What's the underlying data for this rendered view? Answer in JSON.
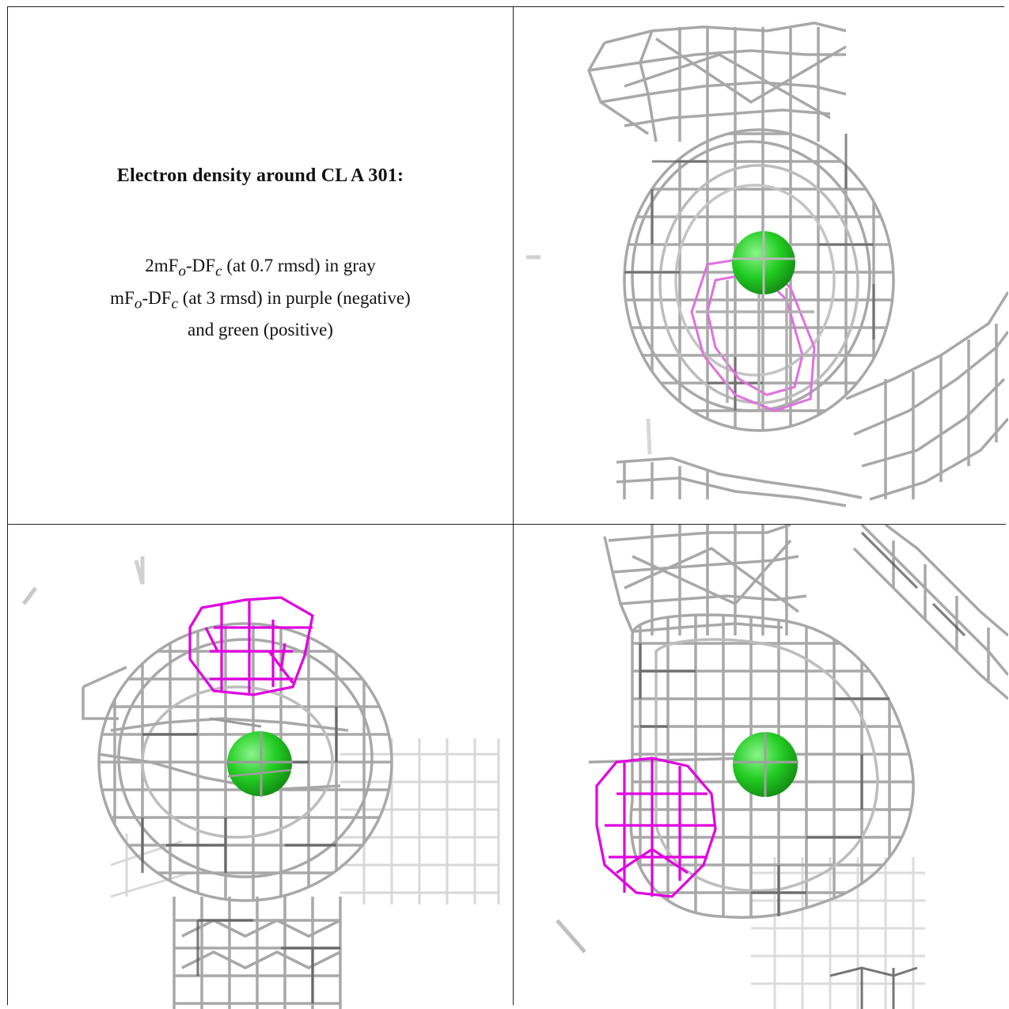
{
  "caption": {
    "title": "Electron density around CL A 301:",
    "line1": {
      "prefix": "2mF",
      "sub1": "o",
      "mid": "-DF",
      "sub2": "c",
      "suffix": " (at 0.7 rmsd) in gray"
    },
    "line2": {
      "prefix": "mF",
      "sub1": "o",
      "mid": "-DF",
      "sub2": "c",
      "suffix": " (at 3 rmsd) in purple (negative)"
    },
    "line3": "and green (positive)"
  },
  "colors": {
    "map_2fofc": "#9a9a9a",
    "map_2fofc_dark": "#5a5a5a",
    "map_fofc_negative": "#e000e0",
    "map_fofc_negative_light": "#e070e0",
    "atom_cl": "#22cc22"
  },
  "views": [
    {
      "label": "view-1",
      "atom": "CL A 301"
    },
    {
      "label": "view-2",
      "atom": "CL A 301"
    },
    {
      "label": "view-3",
      "atom": "CL A 301"
    }
  ]
}
